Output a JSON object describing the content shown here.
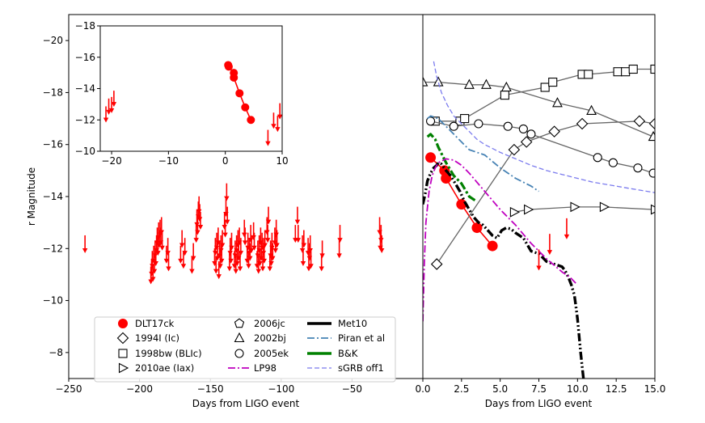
{
  "chart_data": [
    {
      "id": "left_panel",
      "type": "scatter",
      "xlabel": "Days from LIGO event",
      "ylabel": "r Magnitude",
      "xlim": [
        -250,
        0
      ],
      "ylim": [
        -7,
        -21
      ],
      "xticks": [
        -250,
        -200,
        -150,
        -100,
        -50
      ],
      "xtick_labels": [
        "−250",
        "−200",
        "−150",
        "−100",
        "−50"
      ],
      "yticks": [
        -8,
        -10,
        -12,
        -14,
        -16,
        -18,
        -20
      ],
      "ytick_labels": [
        "−8",
        "−10",
        "−12",
        "−14",
        "−16",
        "−18",
        "−20"
      ],
      "upper_limits": [
        [
          -238.5,
          -12.2
        ],
        [
          -192,
          -11.0
        ],
        [
          -191.5,
          -11.3
        ],
        [
          -191,
          -11.6
        ],
        [
          -190.5,
          -11.1
        ],
        [
          -190,
          -11.8
        ],
        [
          -189.5,
          -11.4
        ],
        [
          -189,
          -12.0
        ],
        [
          -188.5,
          -11.7
        ],
        [
          -188,
          -12.2
        ],
        [
          -187.5,
          -12.5
        ],
        [
          -187,
          -12.1
        ],
        [
          -186.5,
          -12.7
        ],
        [
          -186,
          -12.4
        ],
        [
          -185.5,
          -12.8
        ],
        [
          -185,
          -12.5
        ],
        [
          -184.5,
          -12.9
        ],
        [
          -184,
          -12.3
        ],
        [
          -181,
          -11.8
        ],
        [
          -180,
          -12.1
        ],
        [
          -179.5,
          -11.5
        ],
        [
          -171,
          -11.8
        ],
        [
          -170,
          -12.4
        ],
        [
          -169,
          -11.6
        ],
        [
          -168,
          -12.1
        ],
        [
          -163,
          -11.4
        ],
        [
          -162,
          -11.9
        ],
        [
          -160,
          -12.6
        ],
        [
          -159.5,
          -13.2
        ],
        [
          -159,
          -12.9
        ],
        [
          -158.5,
          -13.5
        ],
        [
          -158,
          -13.7
        ],
        [
          -157.5,
          -13.4
        ],
        [
          -157,
          -13.1
        ],
        [
          -147,
          -11.7
        ],
        [
          -146.5,
          -12.1
        ],
        [
          -146,
          -11.4
        ],
        [
          -145.5,
          -12.3
        ],
        [
          -145,
          -11.9
        ],
        [
          -144.5,
          -12.5
        ],
        [
          -144,
          -11.2
        ],
        [
          -143.5,
          -12.0
        ],
        [
          -143,
          -11.6
        ],
        [
          -142.5,
          -12.2
        ],
        [
          -142,
          -11.8
        ],
        [
          -141.5,
          -12.4
        ],
        [
          -140,
          -13.1
        ],
        [
          -139.5,
          -12.8
        ],
        [
          -139,
          -13.6
        ],
        [
          -138.5,
          -14.2
        ],
        [
          -138,
          -13.3
        ],
        [
          -136.5,
          -11.5
        ],
        [
          -136,
          -12.1
        ],
        [
          -135.5,
          -11.8
        ],
        [
          -135,
          -12.3
        ],
        [
          -133,
          -11.6
        ],
        [
          -132.5,
          -12.0
        ],
        [
          -132,
          -11.4
        ],
        [
          -131.5,
          -12.2
        ],
        [
          -131,
          -11.7
        ],
        [
          -130.5,
          -12.4
        ],
        [
          -130,
          -11.9
        ],
        [
          -129.5,
          -12.5
        ],
        [
          -129,
          -11.5
        ],
        [
          -128.5,
          -12.1
        ],
        [
          -126,
          -12.8
        ],
        [
          -125.5,
          -12.5
        ],
        [
          -124,
          -11.8
        ],
        [
          -123.5,
          -12.3
        ],
        [
          -123,
          -11.6
        ],
        [
          -122.5,
          -12.1
        ],
        [
          -122,
          -11.9
        ],
        [
          -121.5,
          -12.6
        ],
        [
          -121,
          -12.2
        ],
        [
          -119.5,
          -12.7
        ],
        [
          -119,
          -12.3
        ],
        [
          -117,
          -11.6
        ],
        [
          -116.5,
          -12.0
        ],
        [
          -116,
          -11.4
        ],
        [
          -115.5,
          -12.2
        ],
        [
          -115,
          -11.7
        ],
        [
          -114.5,
          -12.5
        ],
        [
          -114,
          -11.9
        ],
        [
          -113.5,
          -12.3
        ],
        [
          -113,
          -11.5
        ],
        [
          -112.5,
          -12.1
        ],
        [
          -112,
          -11.8
        ],
        [
          -111.5,
          -12.4
        ],
        [
          -110,
          -12.9
        ],
        [
          -109.5,
          -12.6
        ],
        [
          -109,
          -13.3
        ],
        [
          -108,
          -11.5
        ],
        [
          -107.5,
          -12.0
        ],
        [
          -107,
          -11.7
        ],
        [
          -106.5,
          -12.3
        ],
        [
          -106,
          -11.9
        ],
        [
          -104.5,
          -12.5
        ],
        [
          -104,
          -12.2
        ],
        [
          -103.5,
          -12.8
        ],
        [
          -103,
          -12.4
        ],
        [
          -90,
          -12.6
        ],
        [
          -88.5,
          -13.3
        ],
        [
          -88,
          -12.6
        ],
        [
          -85,
          -12.2
        ],
        [
          -84.5,
          -11.7
        ],
        [
          -84,
          -12.4
        ],
        [
          -81,
          -12.1
        ],
        [
          -80.5,
          -11.5
        ],
        [
          -80,
          -11.9
        ],
        [
          -79.5,
          -12.2
        ],
        [
          -79,
          -11.6
        ],
        [
          -71.5,
          -11.5
        ],
        [
          -71,
          -12.0
        ],
        [
          -59,
          -12.0
        ],
        [
          -58.5,
          -12.6
        ],
        [
          -30.5,
          -12.9
        ],
        [
          -30,
          -12.3
        ],
        [
          -29.5,
          -12.6
        ],
        [
          -29,
          -12.2
        ]
      ]
    },
    {
      "id": "inset",
      "type": "scatter",
      "xlim": [
        -22,
        10
      ],
      "ylim": [
        -10,
        -18
      ],
      "xticks": [
        -20,
        -10,
        0,
        10
      ],
      "xtick_labels": [
        "−20",
        "−10",
        "0",
        "10"
      ],
      "yticks": [
        -10,
        -12,
        -14,
        -16,
        -18
      ],
      "ytick_labels": [
        "−10",
        "−12",
        "−14",
        "−16",
        "−18"
      ],
      "detections": [
        [
          0.5,
          -15.5
        ],
        [
          0.6,
          -15.4
        ],
        [
          1.5,
          -15.0
        ],
        [
          1.5,
          -14.7
        ],
        [
          2.5,
          -13.7
        ],
        [
          3.5,
          -12.8
        ],
        [
          4.5,
          -12.0
        ]
      ],
      "upper_limits": [
        [
          -21.0,
          -12.4
        ],
        [
          -20.5,
          -12.9
        ],
        [
          -20.0,
          -13.0
        ],
        [
          -19.6,
          -13.4
        ],
        [
          7.5,
          -10.9
        ],
        [
          8.5,
          -12.0
        ],
        [
          9.2,
          -11.8
        ],
        [
          9.6,
          -12.6
        ]
      ]
    },
    {
      "id": "right_panel",
      "type": "line",
      "xlabel": "Days from LIGO event",
      "xlim": [
        0,
        15
      ],
      "ylim": [
        -7,
        -21
      ],
      "xticks": [
        0,
        2.5,
        5,
        7.5,
        10,
        12.5,
        15
      ],
      "xtick_labels": [
        "0.0",
        "2.5",
        "5.0",
        "7.5",
        "10.0",
        "12.5",
        "15.0"
      ],
      "series": [
        {
          "name": "DLT17ck",
          "marker": "circle-filled",
          "color": "#ff0000",
          "x": [
            0.5,
            1.4,
            1.5,
            2.5,
            3.5,
            4.5
          ],
          "y": [
            -15.5,
            -15.0,
            -14.7,
            -13.7,
            -12.8,
            -12.1
          ]
        },
        {
          "name": "1994I (Ic)",
          "marker": "diamond",
          "color": "#666666",
          "x": [
            0.9,
            5.9,
            6.7,
            8.5,
            10.3,
            14.0,
            15.0
          ],
          "y": [
            -11.4,
            -15.8,
            -16.1,
            -16.5,
            -16.8,
            -16.9,
            -16.8
          ]
        },
        {
          "name": "1998bw (BLIc)",
          "marker": "square",
          "color": "#666666",
          "x": [
            0.8,
            2.4,
            2.7,
            5.3,
            7.9,
            8.4,
            10.3,
            10.7,
            12.6,
            13.1,
            13.6,
            15.0
          ],
          "y": [
            -16.9,
            -16.9,
            -17.0,
            -17.9,
            -18.2,
            -18.4,
            -18.7,
            -18.7,
            -18.8,
            -18.8,
            -18.9,
            -18.9
          ]
        },
        {
          "name": "2010ae (Iax)",
          "marker": "triangle-right",
          "color": "#666666",
          "x": [
            5.9,
            6.8,
            9.8,
            11.7,
            15.0
          ],
          "y": [
            -13.4,
            -13.5,
            -13.6,
            -13.6,
            -13.5
          ]
        },
        {
          "name": "2006jc",
          "marker": "pentagon",
          "color": "#666666",
          "x": [],
          "y": []
        },
        {
          "name": "2002bj",
          "marker": "triangle-up",
          "color": "#666666",
          "x": [
            0.0,
            1.0,
            3.0,
            4.1,
            5.4,
            8.7,
            10.9,
            14.9
          ],
          "y": [
            -18.4,
            -18.4,
            -18.3,
            -18.3,
            -18.2,
            -17.6,
            -17.3,
            -16.3
          ]
        },
        {
          "name": "2005ek",
          "marker": "circle",
          "color": "#666666",
          "x": [
            0.5,
            2.0,
            3.6,
            5.5,
            6.5,
            7.0,
            11.3,
            12.3,
            13.9,
            14.9
          ],
          "y": [
            -16.9,
            -16.7,
            -16.8,
            -16.7,
            -16.6,
            -16.4,
            -15.5,
            -15.3,
            -15.1,
            -14.9
          ]
        },
        {
          "name": "Met10",
          "style": "dashdotdot",
          "color": "#000000",
          "x": [
            0.0,
            0.15,
            0.3,
            0.5,
            0.7,
            0.9,
            1.0,
            1.2,
            1.5,
            1.8,
            2.1,
            2.4,
            2.7,
            3.0,
            3.3,
            3.6,
            3.9,
            4.2,
            4.5,
            4.8,
            5.1,
            5.4,
            5.7,
            6.0,
            6.5,
            7.0,
            7.5,
            8.0,
            8.5,
            9.0,
            9.2,
            9.4,
            9.6,
            9.8,
            10.0,
            10.2,
            10.4
          ],
          "y": [
            -13.7,
            -14.1,
            -14.6,
            -14.9,
            -15.1,
            -15.2,
            -15.3,
            -15.25,
            -15.0,
            -14.8,
            -14.5,
            -14.2,
            -13.8,
            -13.5,
            -13.2,
            -13.0,
            -12.9,
            -12.7,
            -12.5,
            -12.4,
            -12.7,
            -12.8,
            -12.75,
            -12.6,
            -12.4,
            -11.9,
            -11.8,
            -11.5,
            -11.4,
            -11.3,
            -11.15,
            -10.9,
            -10.6,
            -10.2,
            -9.3,
            -8.0,
            -6.9
          ]
        },
        {
          "name": "Piran et al",
          "style": "dashdot",
          "color": "#4682b4",
          "x": [
            0.3,
            0.5,
            1.0,
            1.5,
            2.0,
            2.5,
            3.0,
            3.5,
            4.0,
            5.0,
            6.0,
            7.0,
            7.5
          ],
          "y": [
            -17.0,
            -17.1,
            -17.0,
            -16.7,
            -16.4,
            -16.1,
            -15.8,
            -15.7,
            -15.6,
            -15.1,
            -14.7,
            -14.4,
            -14.2
          ]
        },
        {
          "name": "B&K",
          "style": "dashdot-thick",
          "color": "#008000",
          "x": [
            0.3,
            0.5,
            0.8,
            1.0,
            1.5,
            2.0,
            2.5,
            3.0,
            3.5
          ],
          "y": [
            -16.3,
            -16.4,
            -16.2,
            -15.9,
            -15.3,
            -14.8,
            -14.5,
            -14.0,
            -13.8
          ]
        },
        {
          "name": "LP98",
          "style": "dashdot",
          "color": "#bf00bf",
          "x": [
            0.0,
            0.1,
            0.2,
            0.4,
            0.6,
            0.8,
            1.0,
            1.5,
            2.0,
            2.5,
            3.0,
            4.0,
            5.0,
            6.0,
            7.0,
            8.0,
            9.0,
            9.5,
            10.0
          ],
          "y": [
            -9.2,
            -11.5,
            -13.0,
            -14.2,
            -14.8,
            -15.1,
            -15.3,
            -15.45,
            -15.4,
            -15.2,
            -14.9,
            -14.2,
            -13.5,
            -12.9,
            -12.2,
            -11.6,
            -11.1,
            -10.9,
            -10.6
          ]
        },
        {
          "name": "sGRB off1",
          "style": "dashed",
          "color": "#7b7bee",
          "x": [
            0.7,
            0.9,
            1.2,
            1.6,
            2.0,
            2.5,
            3.0,
            3.5,
            4.0,
            5.0,
            6.0,
            7.0,
            8.0,
            9.0,
            10.0,
            11.0,
            12.0,
            13.0,
            14.0,
            15.0
          ],
          "y": [
            -19.2,
            -18.6,
            -18.0,
            -17.5,
            -17.1,
            -16.8,
            -16.5,
            -16.2,
            -16.0,
            -15.7,
            -15.45,
            -15.2,
            -15.0,
            -14.85,
            -14.7,
            -14.55,
            -14.45,
            -14.35,
            -14.25,
            -14.15
          ]
        }
      ],
      "upper_limits": [
        [
          7.5,
          -11.6
        ],
        [
          8.2,
          -12.2
        ],
        [
          9.3,
          -12.8
        ]
      ]
    }
  ],
  "legend": {
    "col1": [
      "DLT17ck",
      "1994I (Ic)",
      "1998bw (BLIc)",
      "2010ae (Iax)"
    ],
    "col2": [
      "2006jc",
      "2002bj",
      "2005ek",
      "LP98"
    ],
    "col3": [
      "Met10",
      "Piran et al",
      "B&K",
      "sGRB off1"
    ]
  },
  "colors": {
    "detection": "#ff0000",
    "comparison": "#666666",
    "met10": "#000000",
    "piran": "#4682b4",
    "bk": "#008000",
    "lp98": "#bf00bf",
    "sgrb": "#7b7bee"
  }
}
